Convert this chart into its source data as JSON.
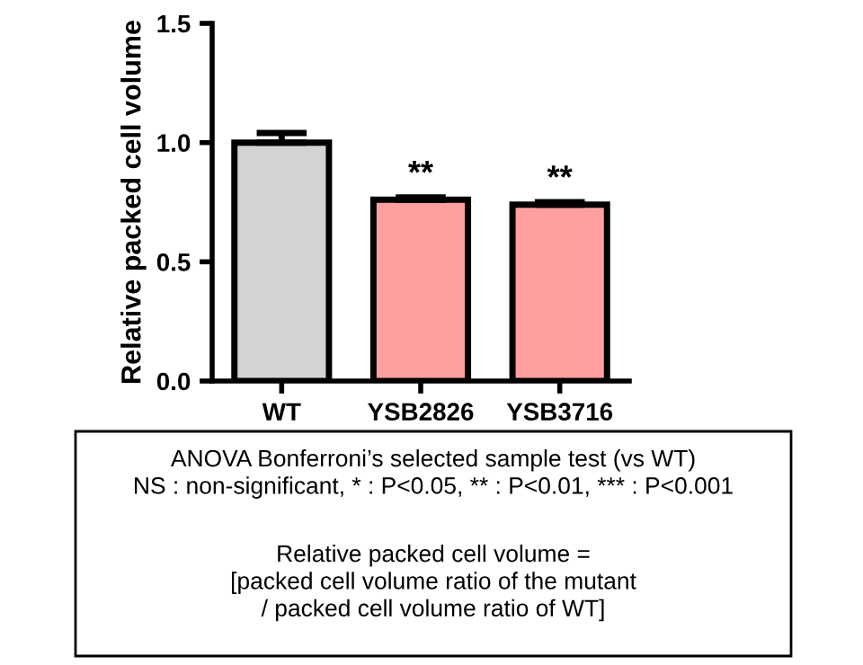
{
  "chart_data": {
    "type": "bar",
    "ylabel": "Relative packed cell volume",
    "categories": [
      "WT",
      "YSB2826",
      "YSB3716"
    ],
    "values": [
      1.0,
      0.76,
      0.74
    ],
    "errors": [
      0.04,
      0.01,
      0.01
    ],
    "colors": [
      "#d3d3d3",
      "#ffa0a0",
      "#ffa0a0"
    ],
    "ylim": [
      0,
      1.5
    ],
    "yticks": [
      {
        "value": 0,
        "label": "0.0"
      },
      {
        "value": 0.5,
        "label": "0.5"
      },
      {
        "value": 1.0,
        "label": "1.0"
      },
      {
        "value": 1.5,
        "label": "1.5"
      }
    ],
    "grid": false,
    "legend": false,
    "annotations": [
      {
        "text": "**",
        "x": "YSB2826",
        "y": 0.77
      },
      {
        "text": "**",
        "x": "YSB3716",
        "y": 0.75
      },
      "ANOVA Bonferroni’s selected sample test (vs WT)\nNS : non-significant, * : P<0.05, ** : P<0.01, *** : P<0.001",
      "Relative packed cell volume =\n[packed cell volume ratio of the mutant\n/ packed cell volume ratio of WT]"
    ]
  }
}
